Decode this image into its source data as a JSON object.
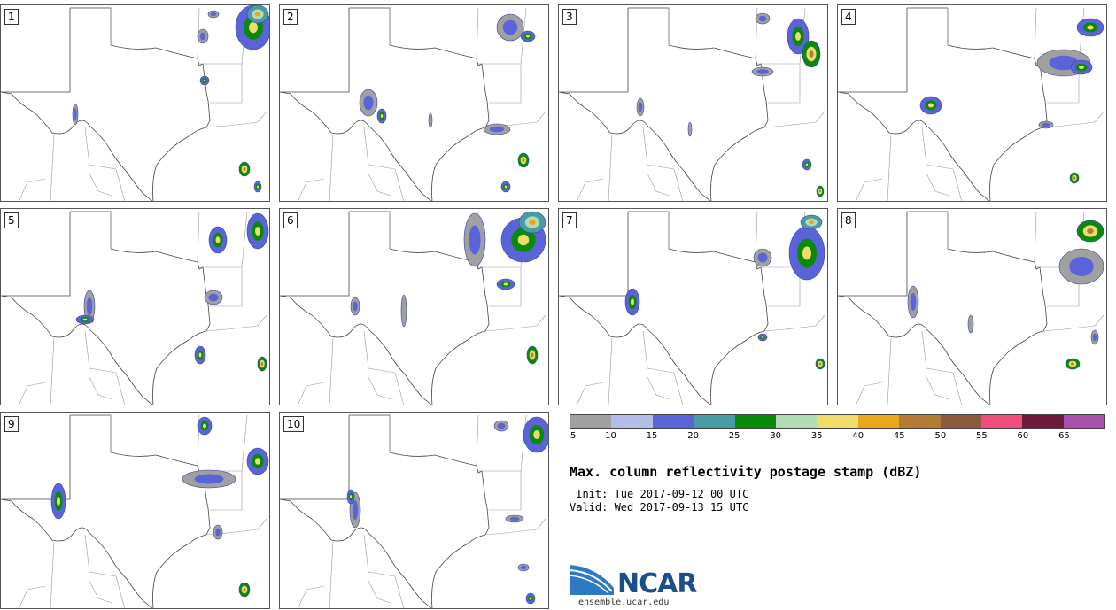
{
  "panels": [
    {
      "label": "1"
    },
    {
      "label": "2"
    },
    {
      "label": "3"
    },
    {
      "label": "4"
    },
    {
      "label": "5"
    },
    {
      "label": "6"
    },
    {
      "label": "7"
    },
    {
      "label": "8"
    },
    {
      "label": "9"
    },
    {
      "label": "10"
    }
  ],
  "colorbar": {
    "colors": [
      "#a0a0a0",
      "#b4bce8",
      "#5a64d8",
      "#4a9ca4",
      "#0a8a0a",
      "#b4dcb4",
      "#f0dc6a",
      "#e8a81a",
      "#b47c32",
      "#8c5a3c",
      "#f04c7c",
      "#6e1a3c",
      "#aa50aa"
    ],
    "ticks": [
      "5",
      "10",
      "15",
      "20",
      "25",
      "30",
      "35",
      "40",
      "45",
      "50",
      "55",
      "60",
      "65"
    ]
  },
  "title": "Max. column reflectivity postage stamp (dBZ)",
  "init": " Init: Tue 2017-09-12 00 UTC",
  "valid": "Valid: Wed 2017-09-13 15 UTC",
  "logo": {
    "text": "NCAR",
    "url": "ensemble.ucar.edu"
  }
}
